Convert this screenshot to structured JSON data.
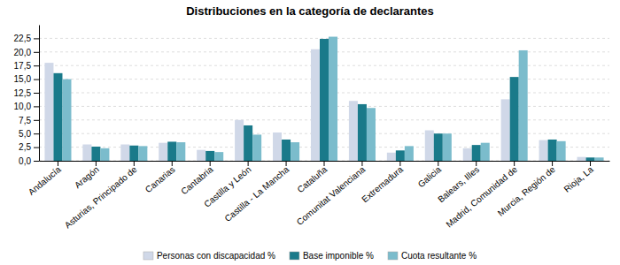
{
  "chart_data": {
    "type": "bar",
    "title": "Distribuciones en la categoría de declarantes",
    "categories": [
      "Andalucía",
      "Aragón",
      "Asturias, Principado de",
      "Canarias",
      "Cantabria",
      "Castilla y León",
      "Castilla - La Mancha",
      "Cataluña",
      "Comunitat Valenciana",
      "Extremadura",
      "Galicia",
      "Balears, Illes",
      "Madrid, Comunidad de",
      "Murcia, Región de",
      "Rioja, La"
    ],
    "series": [
      {
        "name": "Personas con discapacidad %",
        "color": "#d0d8e8",
        "values": [
          18.0,
          3.0,
          3.0,
          3.3,
          2.0,
          7.5,
          5.2,
          20.5,
          11.0,
          1.5,
          5.6,
          2.3,
          11.3,
          3.8,
          0.7
        ]
      },
      {
        "name": "Base imponible %",
        "color": "#1a7a8a",
        "values": [
          16.1,
          2.6,
          2.8,
          3.5,
          1.8,
          6.5,
          3.9,
          22.4,
          10.4,
          1.9,
          5.0,
          2.9,
          15.4,
          3.9,
          0.6
        ]
      },
      {
        "name": "Cuota resultante %",
        "color": "#7bbccc",
        "values": [
          15.0,
          2.3,
          2.7,
          3.4,
          1.6,
          4.8,
          3.4,
          22.8,
          9.7,
          2.7,
          5.0,
          3.3,
          20.3,
          3.6,
          0.6
        ]
      }
    ],
    "ylim": [
      0,
      25.0
    ],
    "yticks": [
      {
        "value": 0,
        "label": "0,0"
      },
      {
        "value": 2.5,
        "label": "2,5"
      },
      {
        "value": 5.0,
        "label": "5,0"
      },
      {
        "value": 7.5,
        "label": "7,5"
      },
      {
        "value": 10.0,
        "label": "10,0"
      },
      {
        "value": 12.5,
        "label": "12,5"
      },
      {
        "value": 15.0,
        "label": "15,0"
      },
      {
        "value": 17.5,
        "label": "17,5"
      },
      {
        "value": 20.0,
        "label": "20,0"
      },
      {
        "value": 22.5,
        "label": "22,5"
      }
    ],
    "grid": true,
    "legend": "bottom"
  }
}
